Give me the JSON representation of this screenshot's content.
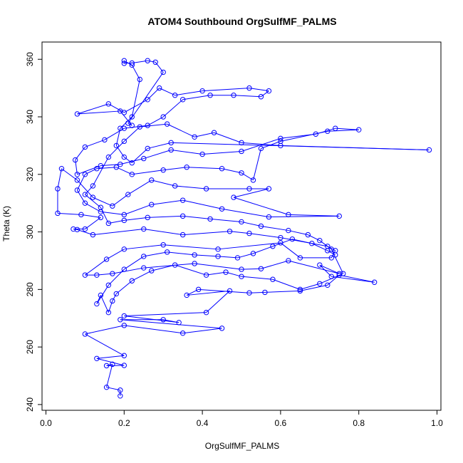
{
  "chart_data": {
    "type": "scatter",
    "title": "ATOM4 Southbound OrgSulfMF_PALMS",
    "xlabel": "OrgSulfMF_PALMS",
    "ylabel": "Theta (K)",
    "xlim": [
      -0.01,
      1.01
    ],
    "ylim": [
      238,
      366
    ],
    "x_ticks": [
      0.0,
      0.2,
      0.4,
      0.6,
      0.8,
      1.0
    ],
    "x_tick_labels": [
      "0.0",
      "0.2",
      "0.4",
      "0.6",
      "0.8",
      "1.0"
    ],
    "y_ticks": [
      240,
      260,
      280,
      300,
      320,
      340,
      360
    ],
    "y_tick_labels": [
      "240",
      "260",
      "280",
      "300",
      "320",
      "340",
      "360"
    ],
    "grid": false,
    "legend": "none",
    "series": [
      {
        "color": "#0000ff",
        "marker": "open-circle",
        "connected": true,
        "points": [
          [
            0.19,
            243.0
          ],
          [
            0.19,
            245.0
          ],
          [
            0.155,
            246.0
          ],
          [
            0.17,
            254.0
          ],
          [
            0.155,
            253.5
          ],
          [
            0.2,
            253.6
          ],
          [
            0.13,
            256.0
          ],
          [
            0.2,
            257.0
          ],
          [
            0.1,
            264.5
          ],
          [
            0.2,
            267.5
          ],
          [
            0.35,
            264.8
          ],
          [
            0.45,
            266.5
          ],
          [
            0.19,
            269.5
          ],
          [
            0.3,
            269.5
          ],
          [
            0.34,
            268.5
          ],
          [
            0.2,
            270.8
          ],
          [
            0.41,
            272.0
          ],
          [
            0.47,
            279.5
          ],
          [
            0.36,
            278.0
          ],
          [
            0.39,
            280.0
          ],
          [
            0.52,
            278.8
          ],
          [
            0.56,
            279.0
          ],
          [
            0.65,
            279.5
          ],
          [
            0.72,
            281.5
          ],
          [
            0.75,
            285.0
          ],
          [
            0.84,
            282.5
          ],
          [
            0.73,
            284.5
          ],
          [
            0.7,
            288.5
          ],
          [
            0.75,
            285.5
          ],
          [
            0.62,
            290.0
          ],
          [
            0.55,
            287.2
          ],
          [
            0.5,
            287.0
          ],
          [
            0.38,
            289.0
          ],
          [
            0.25,
            287.5
          ],
          [
            0.17,
            285.5
          ],
          [
            0.13,
            285.0
          ],
          [
            0.1,
            285.0
          ],
          [
            0.155,
            290.5
          ],
          [
            0.2,
            294.0
          ],
          [
            0.3,
            295.5
          ],
          [
            0.44,
            294.0
          ],
          [
            0.6,
            296.2
          ],
          [
            0.65,
            291.0
          ],
          [
            0.73,
            291.0
          ],
          [
            0.74,
            293.5
          ],
          [
            0.72,
            295.0
          ],
          [
            0.6,
            298.0
          ],
          [
            0.52,
            299.5
          ],
          [
            0.47,
            300.2
          ],
          [
            0.35,
            299.0
          ],
          [
            0.25,
            301.0
          ],
          [
            0.12,
            299.0
          ],
          [
            0.08,
            300.8
          ],
          [
            0.07,
            301.0
          ],
          [
            0.1,
            301.0
          ],
          [
            0.14,
            305.0
          ],
          [
            0.09,
            306.0
          ],
          [
            0.03,
            306.5
          ],
          [
            0.03,
            315.0
          ],
          [
            0.04,
            322.0
          ],
          [
            0.08,
            318.0
          ],
          [
            0.12,
            312.0
          ],
          [
            0.17,
            309.0
          ],
          [
            0.21,
            313.0
          ],
          [
            0.27,
            318.0
          ],
          [
            0.33,
            316.0
          ],
          [
            0.41,
            315.0
          ],
          [
            0.52,
            315.0
          ],
          [
            0.57,
            315.0
          ],
          [
            0.48,
            312.0
          ],
          [
            0.62,
            306.0
          ],
          [
            0.75,
            305.5
          ],
          [
            0.57,
            305.2
          ],
          [
            0.45,
            308.0
          ],
          [
            0.35,
            311.0
          ],
          [
            0.27,
            309.5
          ],
          [
            0.2,
            306.0
          ],
          [
            0.14,
            307.0
          ],
          [
            0.1,
            310.0
          ],
          [
            0.08,
            314.5
          ],
          [
            0.1,
            320.0
          ],
          [
            0.13,
            322.0
          ],
          [
            0.18,
            322.5
          ],
          [
            0.22,
            320.0
          ],
          [
            0.3,
            321.5
          ],
          [
            0.36,
            322.5
          ],
          [
            0.45,
            322.0
          ],
          [
            0.5,
            320.5
          ],
          [
            0.53,
            318.0
          ],
          [
            0.55,
            329.0
          ],
          [
            0.6,
            331.5
          ],
          [
            0.72,
            335.0
          ],
          [
            0.8,
            335.5
          ],
          [
            0.74,
            336.0
          ],
          [
            0.69,
            334.0
          ],
          [
            0.6,
            332.5
          ],
          [
            0.5,
            328.0
          ],
          [
            0.4,
            327.0
          ],
          [
            0.32,
            328.5
          ],
          [
            0.25,
            325.5
          ],
          [
            0.19,
            323.5
          ],
          [
            0.14,
            323.0
          ],
          [
            0.08,
            320.0
          ],
          [
            0.075,
            325.0
          ],
          [
            0.1,
            329.5
          ],
          [
            0.15,
            332.0
          ],
          [
            0.2,
            336.0
          ],
          [
            0.26,
            337.0
          ],
          [
            0.3,
            340.0
          ],
          [
            0.35,
            346.0
          ],
          [
            0.42,
            347.5
          ],
          [
            0.48,
            347.5
          ],
          [
            0.55,
            347.0
          ],
          [
            0.57,
            349.0
          ],
          [
            0.52,
            350.0
          ],
          [
            0.4,
            349.0
          ],
          [
            0.33,
            347.5
          ],
          [
            0.29,
            350.0
          ],
          [
            0.26,
            346.0
          ],
          [
            0.2,
            341.5
          ],
          [
            0.16,
            344.5
          ],
          [
            0.08,
            341.0
          ],
          [
            0.19,
            342.0
          ],
          [
            0.22,
            337.0
          ],
          [
            0.21,
            337.8
          ],
          [
            0.3,
            355.5
          ],
          [
            0.28,
            359.0
          ],
          [
            0.26,
            359.5
          ],
          [
            0.22,
            358.7
          ],
          [
            0.2,
            358.6
          ],
          [
            0.2,
            359.5
          ],
          [
            0.22,
            358.0
          ],
          [
            0.24,
            353.0
          ],
          [
            0.22,
            340.0
          ],
          [
            0.19,
            336.0
          ],
          [
            0.18,
            330.0
          ],
          [
            0.2,
            326.0
          ],
          [
            0.22,
            324.0
          ],
          [
            0.26,
            329.0
          ],
          [
            0.32,
            331.0
          ],
          [
            0.98,
            328.5
          ],
          [
            0.6,
            330.0
          ],
          [
            0.5,
            331.0
          ],
          [
            0.43,
            334.5
          ],
          [
            0.38,
            333.0
          ],
          [
            0.31,
            337.5
          ],
          [
            0.24,
            336.5
          ],
          [
            0.2,
            331.5
          ],
          [
            0.16,
            326.0
          ],
          [
            0.12,
            316.0
          ],
          [
            0.1,
            313.0
          ],
          [
            0.14,
            308.5
          ],
          [
            0.16,
            303.0
          ],
          [
            0.2,
            304.0
          ],
          [
            0.26,
            305.0
          ],
          [
            0.35,
            305.5
          ],
          [
            0.42,
            304.5
          ],
          [
            0.5,
            303.5
          ],
          [
            0.55,
            302.0
          ],
          [
            0.62,
            300.5
          ],
          [
            0.67,
            299.0
          ],
          [
            0.7,
            297.0
          ],
          [
            0.73,
            294.0
          ],
          [
            0.76,
            285.5
          ],
          [
            0.7,
            282.0
          ],
          [
            0.65,
            280.0
          ],
          [
            0.58,
            283.5
          ],
          [
            0.5,
            284.5
          ],
          [
            0.46,
            286.0
          ],
          [
            0.41,
            285.0
          ],
          [
            0.33,
            288.5
          ],
          [
            0.27,
            286.5
          ],
          [
            0.22,
            283.0
          ],
          [
            0.18,
            278.5
          ],
          [
            0.17,
            276.0
          ],
          [
            0.16,
            272.0
          ],
          [
            0.14,
            278.0
          ],
          [
            0.13,
            275.0
          ],
          [
            0.16,
            281.5
          ],
          [
            0.2,
            287.0
          ],
          [
            0.25,
            291.5
          ],
          [
            0.31,
            293.0
          ],
          [
            0.38,
            292.0
          ],
          [
            0.44,
            291.5
          ],
          [
            0.49,
            291.0
          ],
          [
            0.53,
            292.5
          ],
          [
            0.58,
            295.0
          ],
          [
            0.63,
            297.5
          ],
          [
            0.68,
            296.0
          ],
          [
            0.72,
            293.5
          ],
          [
            0.74,
            292.0
          ]
        ]
      }
    ]
  }
}
